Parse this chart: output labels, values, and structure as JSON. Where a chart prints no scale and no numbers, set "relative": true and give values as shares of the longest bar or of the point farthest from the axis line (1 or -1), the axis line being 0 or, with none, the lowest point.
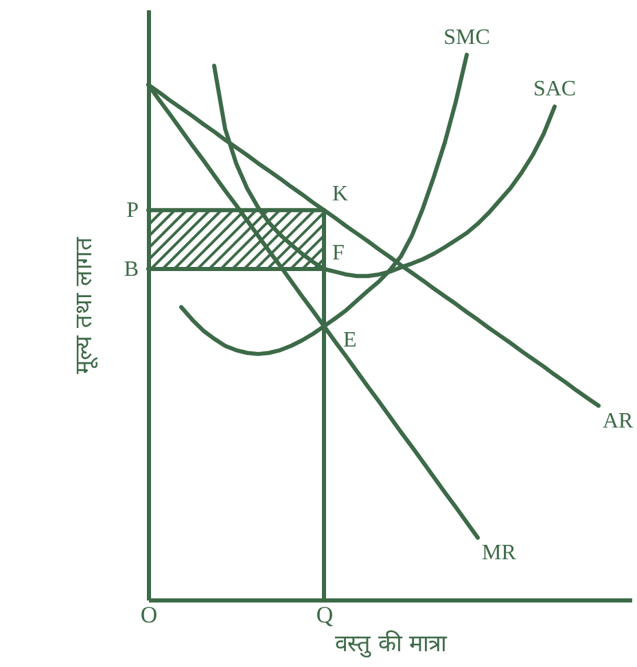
{
  "chart_data": {
    "type": "line",
    "relative": true,
    "xlabel": "वस्तु की मात्रा",
    "ylabel": "मूल्य तथा लागत",
    "categories": [
      "O",
      null,
      null,
      null,
      null,
      null,
      null,
      null,
      null,
      null,
      null,
      null,
      null,
      null,
      null,
      null,
      "Q",
      null,
      null,
      null,
      null,
      null,
      null,
      null,
      null,
      null,
      null,
      null,
      null,
      null,
      null,
      null,
      null,
      null,
      null,
      null,
      null,
      null,
      null,
      null,
      null,
      null,
      null,
      null,
      null
    ],
    "series": [
      {
        "name": "SMC",
        "color": "#3d6a48",
        "values": [
          null,
          null,
          null,
          0.537,
          0.514,
          0.494,
          0.479,
          0.466,
          0.458,
          0.453,
          0.451,
          0.453,
          0.458,
          0.466,
          0.476,
          0.488,
          0.502,
          0.516,
          0.531,
          0.549,
          0.567,
          0.584,
          0.605,
          0.63,
          0.668,
          0.718,
          0.776,
          0.839,
          0.914,
          1.0,
          null,
          null,
          null,
          null,
          null,
          null,
          null,
          null,
          null,
          null,
          null,
          null,
          null,
          null,
          null
        ]
      },
      {
        "name": "SAC",
        "color": "#3d6a48",
        "values": [
          null,
          null,
          null,
          null,
          null,
          null,
          0.98,
          0.864,
          0.801,
          0.755,
          0.72,
          0.692,
          0.67,
          0.652,
          0.635,
          0.62,
          0.607,
          0.602,
          0.597,
          0.594,
          0.594,
          0.597,
          0.602,
          0.61,
          0.617,
          0.625,
          0.635,
          0.647,
          0.66,
          0.673,
          0.69,
          0.71,
          0.733,
          0.756,
          0.784,
          0.816,
          0.855,
          0.905,
          null,
          null,
          null,
          null,
          null,
          null,
          null
        ]
      },
      {
        "name": "AR",
        "color": "#3d6a48",
        "values": [
          0.945,
          0.931,
          0.916,
          0.902,
          0.888,
          0.873,
          0.859,
          0.844,
          0.83,
          0.816,
          0.801,
          0.787,
          0.773,
          0.758,
          0.744,
          0.729,
          0.715,
          0.701,
          0.686,
          0.672,
          0.658,
          0.643,
          0.629,
          0.614,
          0.6,
          0.586,
          0.571,
          0.557,
          0.543,
          0.528,
          0.514,
          0.499,
          0.485,
          0.471,
          0.456,
          0.442,
          0.428,
          0.413,
          0.399,
          0.384,
          0.37,
          0.356,
          null,
          null,
          null
        ]
      },
      {
        "name": "MR",
        "color": "#3d6a48",
        "values": [
          0.945,
          0.917,
          0.89,
          0.862,
          0.834,
          0.807,
          0.779,
          0.751,
          0.724,
          0.696,
          0.668,
          0.64,
          0.613,
          0.585,
          0.557,
          0.53,
          0.502,
          0.474,
          0.447,
          0.419,
          0.391,
          0.364,
          0.336,
          0.308,
          0.281,
          0.253,
          0.225,
          0.197,
          0.17,
          0.142,
          0.114,
          null,
          null,
          null,
          null,
          null,
          null,
          null,
          null,
          null,
          null,
          null,
          null,
          null,
          null
        ]
      },
      {
        "color": "#3d6a48",
        "x": [
          "O",
          "Q"
        ],
        "values": [
          0.715,
          0.715
        ],
        "lower": [
          0.607,
          0.607
        ],
        "upper": [
          0.715,
          0.715
        ]
      },
      {
        "color": "#3d6a48",
        "x": [
          "O",
          "Q"
        ],
        "values": [
          0.607,
          0.607
        ]
      },
      {
        "color": "#3d6a48",
        "x": [
          "Q",
          "Q"
        ],
        "values": [
          0,
          0.715
        ]
      }
    ],
    "annotations": [
      {
        "text": "P",
        "x": "O",
        "y": 0.715
      },
      {
        "text": "B",
        "x": "O",
        "y": 0.607
      },
      {
        "text": "K",
        "x": "Q",
        "y": 0.715
      },
      {
        "text": "F",
        "x": "Q",
        "y": 0.607
      },
      {
        "text": "E",
        "x": "Q",
        "y": 0.502
      }
    ]
  }
}
